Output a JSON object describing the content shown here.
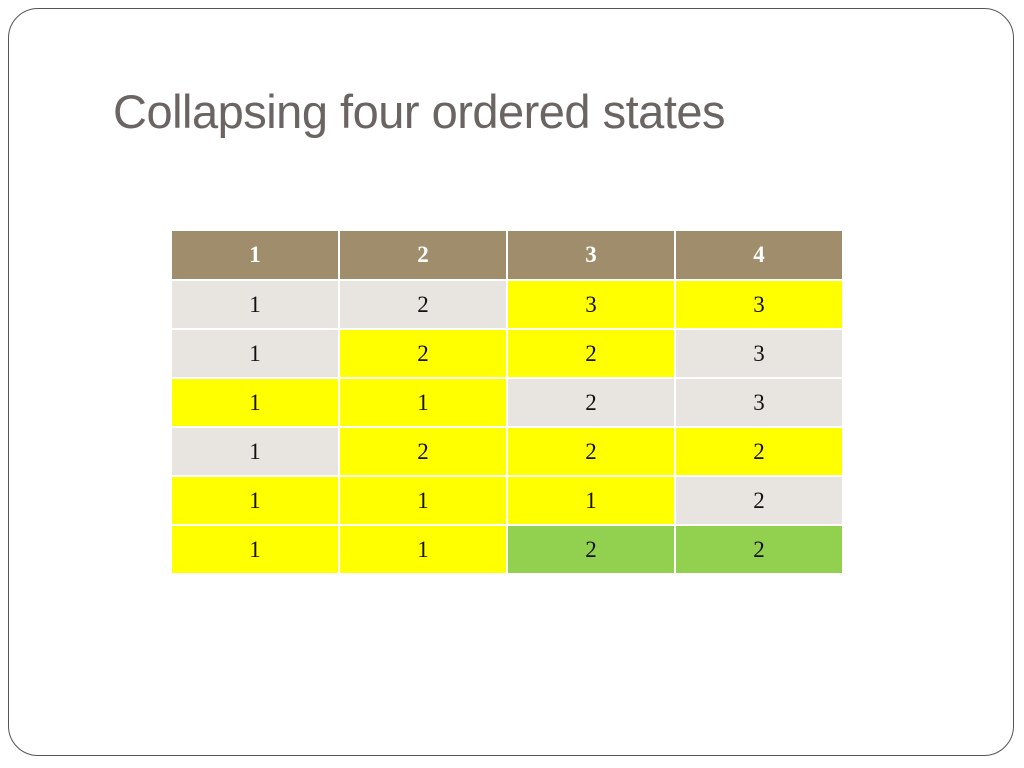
{
  "header": {
    "title": "Collapsing four ordered states"
  },
  "table": {
    "columns": [
      1,
      2,
      3,
      4
    ],
    "header_fill": "#a08d6c",
    "rows": [
      [
        1,
        2,
        3,
        3
      ],
      [
        1,
        2,
        2,
        3
      ],
      [
        1,
        1,
        2,
        3
      ],
      [
        1,
        2,
        2,
        2
      ],
      [
        1,
        1,
        1,
        2
      ],
      [
        1,
        1,
        2,
        2
      ]
    ],
    "fills": [
      [
        "#e8e5e0",
        "#e8e5e0",
        "#ffff00",
        "#ffff00"
      ],
      [
        "#e8e5e0",
        "#ffff00",
        "#ffff00",
        "#e8e5e0"
      ],
      [
        "#ffff00",
        "#ffff00",
        "#e8e5e0",
        "#e8e5e0"
      ],
      [
        "#e8e5e0",
        "#ffff00",
        "#ffff00",
        "#ffff00"
      ],
      [
        "#ffff00",
        "#ffff00",
        "#ffff00",
        "#e8e5e0"
      ],
      [
        "#ffff00",
        "#ffff00",
        "#92d050",
        "#92d050"
      ]
    ]
  }
}
